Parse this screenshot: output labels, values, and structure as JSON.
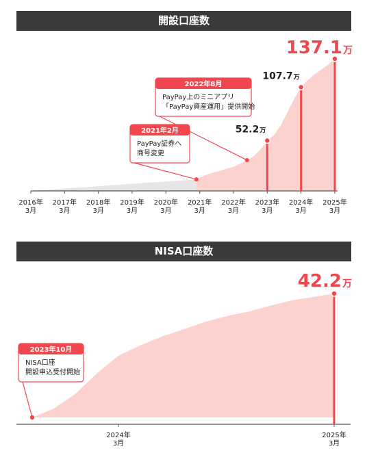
{
  "colors": {
    "accent": "#f0474e",
    "fill": "#fcd2cf",
    "grey_fill": "#e6e6e6",
    "banner": "#3a3a3a"
  },
  "chart_data": [
    {
      "type": "area",
      "title": "開設口座数",
      "unit": "万",
      "x_ticks": [
        {
          "year": "2016年",
          "month": "3月"
        },
        {
          "year": "2017年",
          "month": "3月"
        },
        {
          "year": "2018年",
          "month": "3月"
        },
        {
          "year": "2019年",
          "month": "3月"
        },
        {
          "year": "2020年",
          "month": "3月"
        },
        {
          "year": "2021年",
          "month": "3月"
        },
        {
          "year": "2022年",
          "month": "3月"
        },
        {
          "year": "2023年",
          "month": "3月"
        },
        {
          "year": "2024年",
          "month": "3月"
        },
        {
          "year": "2025年",
          "month": "3月"
        }
      ],
      "x_range": [
        2016.2,
        2025.2
      ],
      "y_range": [
        0,
        137.1
      ],
      "grey_series": [
        [
          2016.2,
          0.0
        ],
        [
          2021.1,
          12.0
        ]
      ],
      "series": [
        [
          2021.1,
          12.0
        ],
        [
          2021.3,
          15.5
        ],
        [
          2021.6,
          19.0
        ],
        [
          2021.9,
          22.0
        ],
        [
          2022.2,
          25.0
        ],
        [
          2022.5,
          30.0
        ],
        [
          2022.8,
          36.0
        ],
        [
          2023.0,
          43.0
        ],
        [
          2023.2,
          52.2
        ],
        [
          2023.4,
          58.0
        ],
        [
          2023.6,
          68.0
        ],
        [
          2023.8,
          82.0
        ],
        [
          2024.0,
          96.0
        ],
        [
          2024.2,
          107.7
        ],
        [
          2024.4,
          115.0
        ],
        [
          2024.6,
          121.0
        ],
        [
          2024.8,
          126.0
        ],
        [
          2025.0,
          131.0
        ],
        [
          2025.2,
          137.1
        ]
      ],
      "value_labels": [
        {
          "x": 2023.2,
          "value": "52.2",
          "unit": "万"
        },
        {
          "x": 2024.2,
          "value": "107.7",
          "unit": "万"
        },
        {
          "x": 2025.2,
          "value": "137.1",
          "unit": "万"
        }
      ],
      "callouts": [
        {
          "x": 2021.1,
          "y": 12.0,
          "date": "2021年2月",
          "lines": [
            "PayPay証券へ",
            "商号変更"
          ]
        },
        {
          "x": 2022.6,
          "y": 32.0,
          "date": "2022年8月",
          "lines": [
            "PayPay上のミニアプリ",
            "「PayPay資産運用」提供開始"
          ]
        }
      ]
    },
    {
      "type": "area",
      "title": "NISA口座数",
      "unit": "万",
      "x_ticks": [
        {
          "year": "2024年",
          "month": "3月"
        },
        {
          "year": "2025年",
          "month": "3月"
        }
      ],
      "x_range": [
        2023.8,
        2025.2
      ],
      "x_tick_positions": [
        2024.2,
        2025.2
      ],
      "y_range": [
        0,
        42.2
      ],
      "series": [
        [
          2023.8,
          0.0
        ],
        [
          2023.9,
          3.0
        ],
        [
          2024.0,
          8.0
        ],
        [
          2024.1,
          15.0
        ],
        [
          2024.2,
          21.0
        ],
        [
          2024.3,
          24.5
        ],
        [
          2024.4,
          27.5
        ],
        [
          2024.5,
          30.0
        ],
        [
          2024.6,
          32.5
        ],
        [
          2024.7,
          34.5
        ],
        [
          2024.8,
          36.0
        ],
        [
          2024.9,
          38.0
        ],
        [
          2025.0,
          39.8
        ],
        [
          2025.1,
          41.0
        ],
        [
          2025.2,
          42.2
        ]
      ],
      "value_labels": [
        {
          "x": 2025.2,
          "value": "42.2",
          "unit": "万"
        }
      ],
      "callouts": [
        {
          "x": 2023.8,
          "y": 0.0,
          "date": "2023年10月",
          "lines": [
            "NISA口座",
            "開設申込受付開始"
          ]
        }
      ]
    }
  ]
}
